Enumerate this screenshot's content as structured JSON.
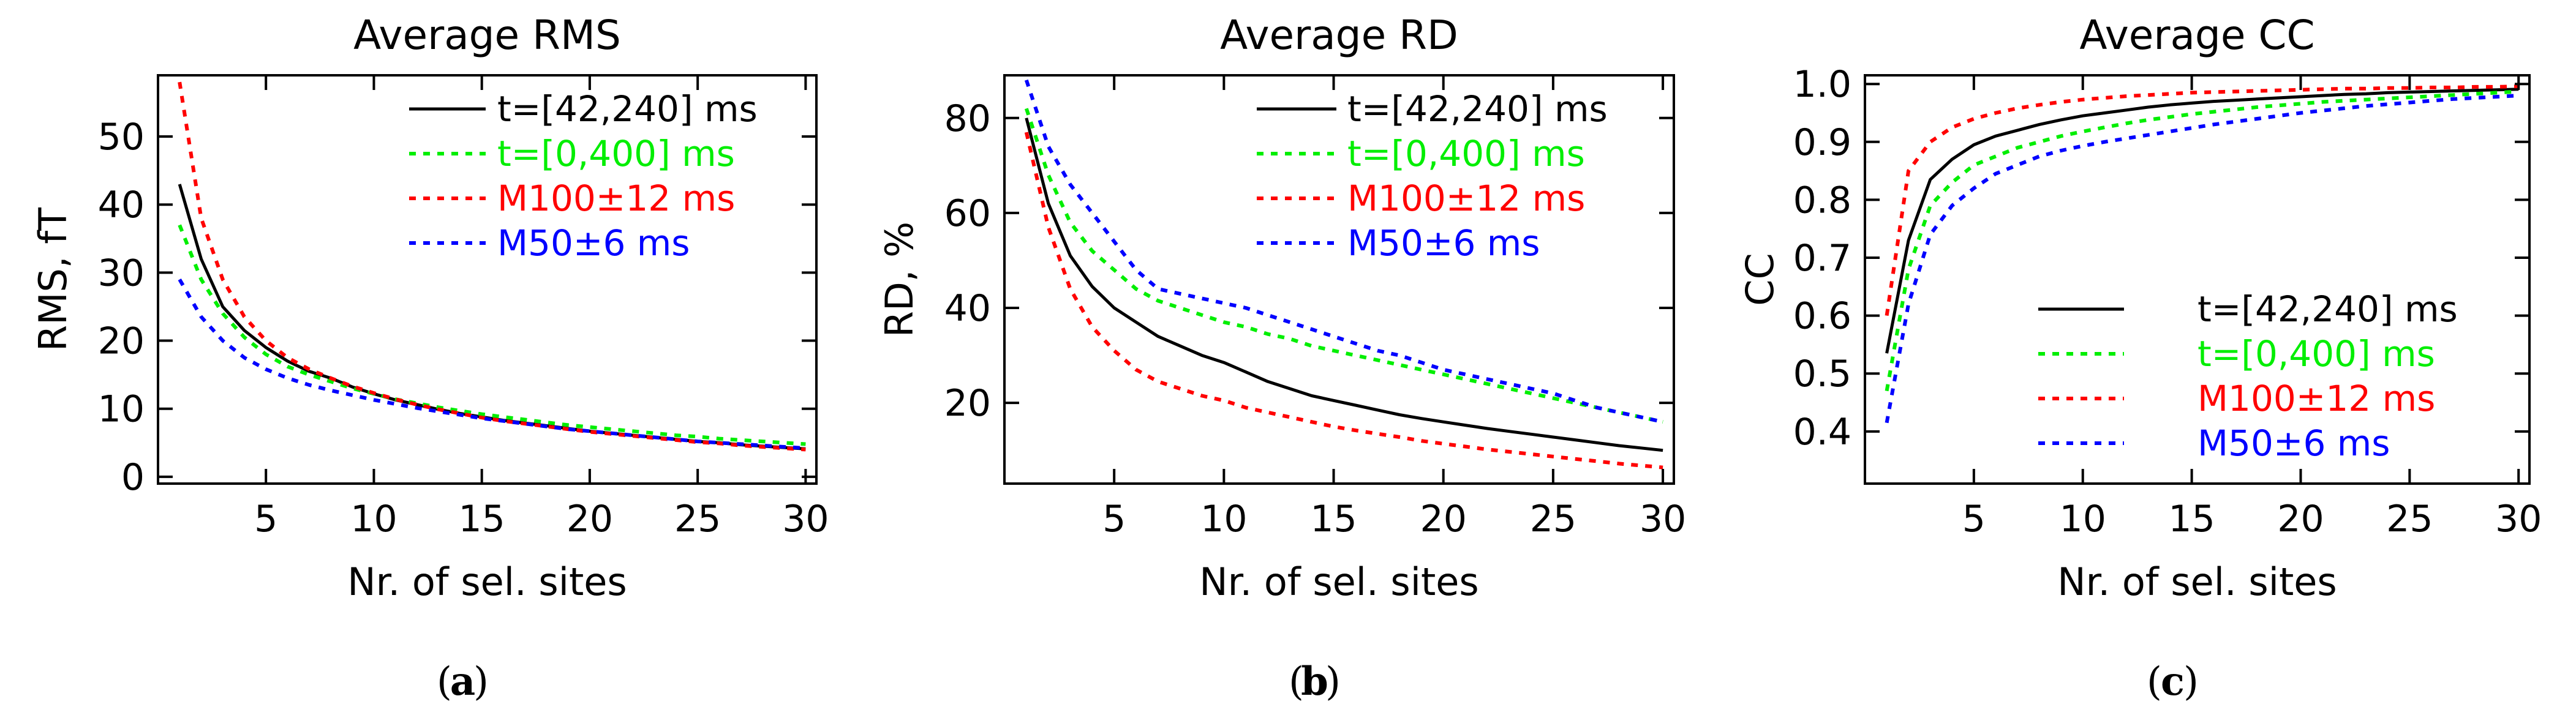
{
  "chart_data": [
    {
      "type": "line",
      "title": "Average RMS",
      "xlabel": "Nr. of sel. sites",
      "ylabel": "RMS, fT",
      "panel_label": "a",
      "xlim": [
        0,
        30.5
      ],
      "ylim": [
        -1,
        59
      ],
      "xticks": [
        5,
        10,
        15,
        20,
        25,
        30
      ],
      "xtick_labels": [
        "5",
        "10",
        "15",
        "20",
        "25",
        "30"
      ],
      "yticks": [
        0,
        10,
        20,
        30,
        40,
        50
      ],
      "ytick_labels": [
        "0",
        "10",
        "20",
        "30",
        "40",
        "50"
      ],
      "legend_position": "top-right",
      "x": [
        1,
        2,
        3,
        4,
        5,
        6,
        7,
        8,
        9,
        10,
        11,
        12,
        13,
        14,
        15,
        16,
        17,
        18,
        19,
        20,
        21,
        22,
        23,
        24,
        25,
        26,
        27,
        28,
        29,
        30
      ],
      "series": [
        {
          "name": "t=[42,240] ms",
          "color": "#000000",
          "style": "solid",
          "values": [
            43,
            32,
            25,
            21.5,
            19,
            17,
            15.5,
            14.5,
            13.2,
            12.2,
            11.3,
            10.6,
            9.9,
            9.3,
            8.8,
            8.3,
            7.9,
            7.5,
            7.1,
            6.7,
            6.4,
            6.1,
            5.8,
            5.5,
            5.2,
            5.0,
            4.7,
            4.5,
            4.3,
            4.1
          ]
        },
        {
          "name": "t=[0,400] ms",
          "color": "#00ee00",
          "style": "dotted",
          "values": [
            37,
            29,
            24,
            20.5,
            18,
            16.2,
            15,
            14,
            13,
            12.2,
            11.4,
            10.8,
            10.2,
            9.7,
            9.2,
            8.8,
            8.4,
            8.0,
            7.6,
            7.3,
            7.0,
            6.7,
            6.4,
            6.1,
            5.9,
            5.6,
            5.4,
            5.2,
            5.0,
            4.8
          ]
        },
        {
          "name": "M100±12 ms",
          "color": "#ff0000",
          "style": "dotted",
          "values": [
            58,
            38,
            29,
            23.5,
            20,
            17.5,
            15.8,
            14.5,
            13.3,
            12.3,
            11.4,
            10.6,
            9.9,
            9.3,
            8.7,
            8.2,
            7.8,
            7.4,
            7.0,
            6.6,
            6.3,
            6.0,
            5.7,
            5.4,
            5.1,
            4.9,
            4.6,
            4.4,
            4.2,
            4.0
          ]
        },
        {
          "name": "M50±6 ms",
          "color": "#0000ff",
          "style": "dotted",
          "values": [
            29,
            23.5,
            20,
            17.5,
            15.8,
            14.5,
            13.5,
            12.7,
            12,
            11.3,
            10.7,
            10.1,
            9.6,
            9.1,
            8.6,
            8.2,
            7.8,
            7.4,
            7.0,
            6.7,
            6.4,
            6.1,
            5.8,
            5.5,
            5.2,
            5.0,
            4.8,
            4.6,
            4.4,
            4.2
          ]
        }
      ]
    },
    {
      "type": "line",
      "title": "Average RD",
      "xlabel": "Nr. of sel. sites",
      "ylabel": "RD, %",
      "panel_label": "b",
      "xlim": [
        0,
        30.5
      ],
      "ylim": [
        3,
        89
      ],
      "xticks": [
        5,
        10,
        15,
        20,
        25,
        30
      ],
      "xtick_labels": [
        "5",
        "10",
        "15",
        "20",
        "25",
        "30"
      ],
      "yticks": [
        20,
        40,
        60,
        80
      ],
      "ytick_labels": [
        "20",
        "40",
        "60",
        "80"
      ],
      "legend_position": "top-right",
      "x": [
        1,
        2,
        3,
        4,
        5,
        6,
        7,
        8,
        9,
        10,
        11,
        12,
        13,
        14,
        15,
        16,
        17,
        18,
        19,
        20,
        21,
        22,
        23,
        24,
        25,
        26,
        27,
        28,
        29,
        30
      ],
      "series": [
        {
          "name": "t=[42,240] ms",
          "color": "#000000",
          "style": "solid",
          "values": [
            80,
            62,
            51,
            44.5,
            40,
            37,
            34,
            32,
            30,
            28.5,
            26.5,
            24.5,
            23,
            21.5,
            20.5,
            19.5,
            18.5,
            17.5,
            16.7,
            16,
            15.3,
            14.6,
            14,
            13.4,
            12.8,
            12.2,
            11.6,
            11,
            10.5,
            10
          ]
        },
        {
          "name": "t=[0,400] ms",
          "color": "#00ee00",
          "style": "dotted",
          "values": [
            82,
            68,
            58,
            52,
            48,
            44,
            41.5,
            40,
            38.5,
            37,
            36,
            34.5,
            33.5,
            32,
            31,
            30,
            29,
            28,
            27,
            26,
            25,
            24,
            23,
            22,
            21,
            20,
            19,
            18,
            17,
            16
          ]
        },
        {
          "name": "M100±12 ms",
          "color": "#ff0000",
          "style": "dotted",
          "values": [
            77,
            57,
            44,
            36,
            31,
            27,
            24.5,
            23,
            21.5,
            20.5,
            19,
            18,
            17,
            16,
            15,
            14.2,
            13.5,
            12.8,
            12,
            11.4,
            10.8,
            10.2,
            9.7,
            9.2,
            8.7,
            8.2,
            7.7,
            7.2,
            6.8,
            6.4
          ]
        },
        {
          "name": "M50±6 ms",
          "color": "#0000ff",
          "style": "dotted",
          "values": [
            88,
            74,
            66,
            60,
            54,
            48,
            44,
            43,
            42,
            41,
            40,
            38.5,
            37,
            35.5,
            34,
            32.5,
            31,
            30,
            28.5,
            27,
            26,
            25,
            24,
            23,
            22,
            20.5,
            19,
            18,
            17,
            16
          ]
        }
      ]
    },
    {
      "type": "line",
      "title": "Average CC",
      "xlabel": "Nr. of sel. sites",
      "ylabel": "CC",
      "panel_label": "c",
      "xlim": [
        0,
        30.5
      ],
      "ylim": [
        0.31,
        1.015
      ],
      "xticks": [
        5,
        10,
        15,
        20,
        25,
        30
      ],
      "xtick_labels": [
        "5",
        "10",
        "15",
        "20",
        "25",
        "30"
      ],
      "yticks": [
        0.4,
        0.5,
        0.6,
        0.7,
        0.8,
        0.9,
        1.0
      ],
      "ytick_labels": [
        "0.4",
        "0.5",
        "0.6",
        "0.7",
        "0.8",
        "0.9",
        "1.0"
      ],
      "legend_position": "bottom-right",
      "x": [
        1,
        2,
        3,
        4,
        5,
        6,
        7,
        8,
        9,
        10,
        11,
        12,
        13,
        14,
        15,
        16,
        17,
        18,
        19,
        20,
        21,
        22,
        23,
        24,
        25,
        26,
        27,
        28,
        29,
        30
      ],
      "series": [
        {
          "name": "t=[42,240] ms",
          "color": "#000000",
          "style": "solid",
          "values": [
            0.535,
            0.73,
            0.835,
            0.87,
            0.895,
            0.91,
            0.92,
            0.93,
            0.938,
            0.945,
            0.95,
            0.955,
            0.96,
            0.964,
            0.967,
            0.97,
            0.972,
            0.974,
            0.976,
            0.978,
            0.98,
            0.982,
            0.983,
            0.985,
            0.986,
            0.987,
            0.988,
            0.989,
            0.99,
            0.991
          ]
        },
        {
          "name": "t=[0,400] ms",
          "color": "#00ee00",
          "style": "dotted",
          "values": [
            0.47,
            0.68,
            0.79,
            0.83,
            0.86,
            0.875,
            0.89,
            0.9,
            0.91,
            0.918,
            0.925,
            0.932,
            0.938,
            0.943,
            0.948,
            0.952,
            0.956,
            0.96,
            0.963,
            0.966,
            0.969,
            0.971,
            0.973,
            0.975,
            0.977,
            0.979,
            0.981,
            0.983,
            0.985,
            0.987
          ]
        },
        {
          "name": "M100±12 ms",
          "color": "#ff0000",
          "style": "dotted",
          "values": [
            0.6,
            0.85,
            0.9,
            0.925,
            0.94,
            0.95,
            0.958,
            0.964,
            0.969,
            0.973,
            0.976,
            0.979,
            0.981,
            0.983,
            0.985,
            0.986,
            0.987,
            0.988,
            0.989,
            0.99,
            0.991,
            0.992,
            0.992,
            0.993,
            0.993,
            0.994,
            0.994,
            0.995,
            0.995,
            0.996
          ]
        },
        {
          "name": "M50±6 ms",
          "color": "#0000ff",
          "style": "dotted",
          "values": [
            0.415,
            0.62,
            0.74,
            0.79,
            0.82,
            0.845,
            0.86,
            0.875,
            0.885,
            0.893,
            0.9,
            0.906,
            0.912,
            0.918,
            0.924,
            0.93,
            0.935,
            0.94,
            0.945,
            0.95,
            0.954,
            0.958,
            0.962,
            0.965,
            0.968,
            0.971,
            0.974,
            0.976,
            0.978,
            0.98
          ]
        }
      ]
    }
  ]
}
